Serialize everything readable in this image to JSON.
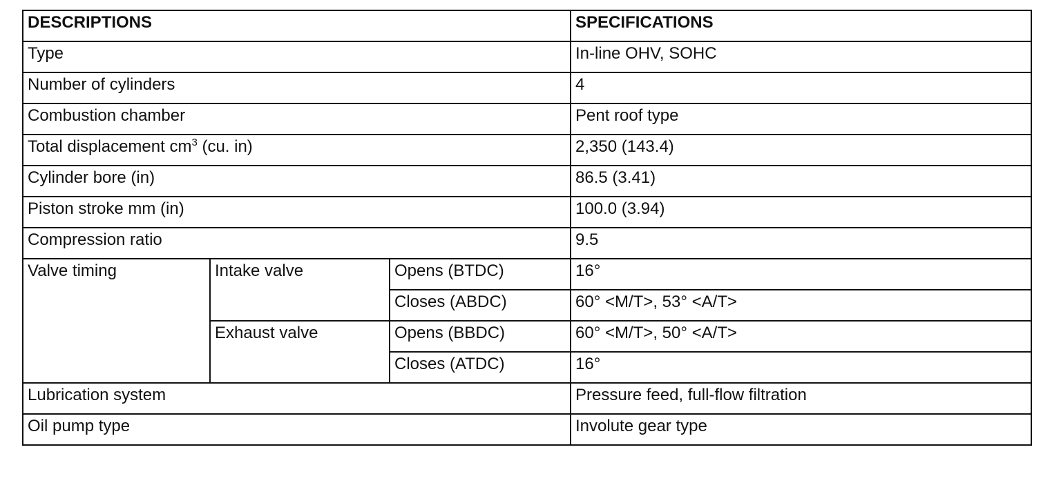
{
  "header": {
    "descriptions": "DESCRIPTIONS",
    "specifications": "SPECIFICATIONS"
  },
  "rows": [
    {
      "label": "Type",
      "value": "In-line OHV, SOHC"
    },
    {
      "label": "Number of cylinders",
      "value": "4"
    },
    {
      "label": "Combustion chamber",
      "value": "Pent roof type"
    },
    {
      "label": "Total displacement cm",
      "label_sup": "3",
      "label_suffix": " (cu. in)",
      "value": "2,350 (143.4)"
    },
    {
      "label": "Cylinder bore (in)",
      "value": "86.5 (3.41)"
    },
    {
      "label": "Piston stroke mm (in)",
      "value": "100.0 (3.94)"
    },
    {
      "label": "Compression ratio",
      "value": "9.5"
    }
  ],
  "valve_timing": {
    "label": "Valve timing",
    "intake": {
      "label": "Intake valve",
      "opens_label": "Opens (BTDC)",
      "opens_value": "16°",
      "closes_label": "Closes (ABDC)",
      "closes_value": "60° <M/T>, 53° <A/T>"
    },
    "exhaust": {
      "label": "Exhaust valve",
      "opens_label": "Opens (BBDC)",
      "opens_value": "60° <M/T>, 50° <A/T>",
      "closes_label": "Closes (ATDC)",
      "closes_value": "16°"
    }
  },
  "rows_after": [
    {
      "label": "Lubrication system",
      "value": "Pressure feed, full-flow filtration"
    },
    {
      "label": "Oil pump type",
      "value": "Involute gear type"
    }
  ]
}
